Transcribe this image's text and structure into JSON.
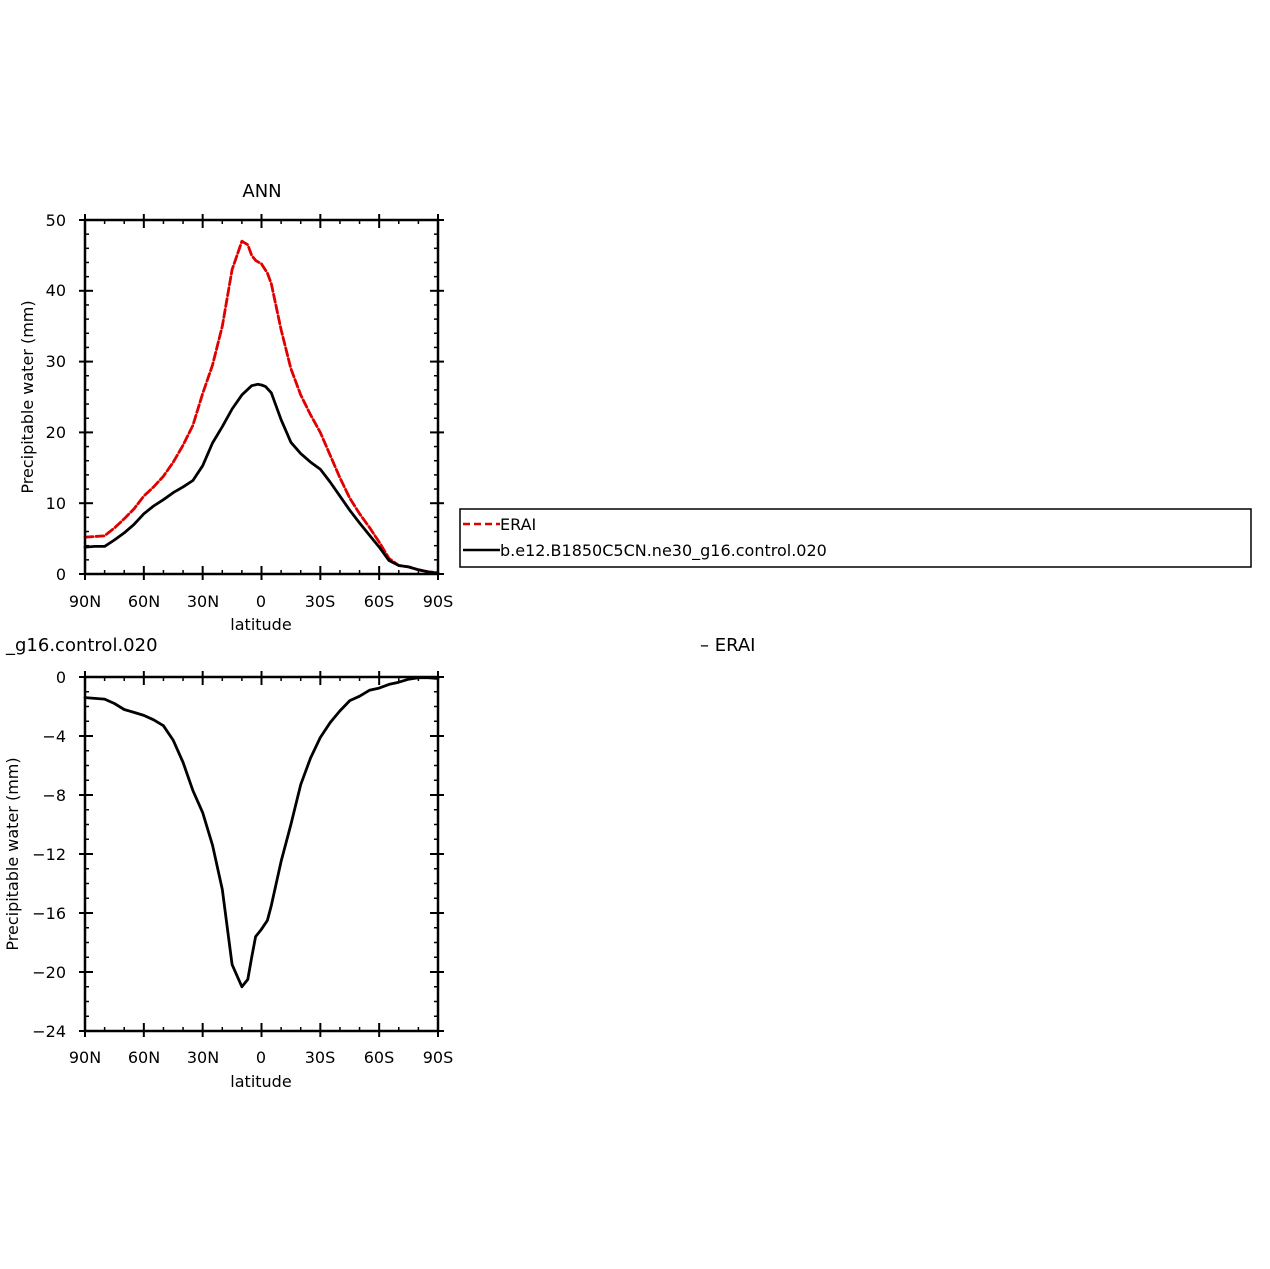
{
  "chart_data": [
    {
      "type": "line",
      "title": "ANN",
      "xlabel": "latitude",
      "ylabel": "Precipitable water (mm)",
      "xlim": [
        90,
        -90
      ],
      "ylim": [
        0,
        50
      ],
      "x_ticks": [
        90,
        60,
        30,
        0,
        -30,
        -60,
        -90
      ],
      "x_tick_labels": [
        "90N",
        "60N",
        "30N",
        "0",
        "30S",
        "60S",
        "90S"
      ],
      "y_ticks": [
        0,
        10,
        20,
        30,
        40,
        50
      ],
      "y_tick_labels": [
        "0",
        "10",
        "20",
        "30",
        "40",
        "50"
      ],
      "legend": {
        "placement": "right",
        "entries": [
          "ERAI",
          "b.e12.B1850C5CN.ne30_g16.control.020"
        ]
      },
      "series": [
        {
          "name": "ERAI",
          "color": "#e00000",
          "style": "dashed",
          "x": [
            90,
            85,
            80,
            75,
            70,
            65,
            60,
            55,
            50,
            45,
            40,
            35,
            30,
            25,
            20,
            15,
            10,
            7,
            5,
            3,
            0,
            -3,
            -5,
            -10,
            -15,
            -20,
            -25,
            -30,
            -35,
            -40,
            -45,
            -50,
            -55,
            -60,
            -65,
            -70,
            -75,
            -80,
            -85,
            -90
          ],
          "y": [
            5.2,
            5.3,
            5.4,
            6.5,
            7.8,
            9.2,
            11,
            12.3,
            13.8,
            15.8,
            18.2,
            21,
            25.5,
            29.5,
            35,
            43,
            47,
            46.5,
            45,
            44.3,
            43.8,
            42.5,
            41,
            34.5,
            29,
            25.3,
            22.5,
            20,
            16.8,
            13.6,
            10.7,
            8.5,
            6.6,
            4.5,
            2.2,
            1.2,
            1.0,
            0.6,
            0.3,
            0.2
          ]
        },
        {
          "name": "b.e12.B1850C5CN.ne30_g16.control.020",
          "color": "#000000",
          "style": "solid",
          "x": [
            90,
            85,
            80,
            75,
            70,
            65,
            60,
            55,
            50,
            45,
            40,
            35,
            30,
            25,
            20,
            15,
            10,
            5,
            2,
            0,
            -2,
            -5,
            -10,
            -15,
            -20,
            -25,
            -30,
            -35,
            -40,
            -45,
            -50,
            -55,
            -60,
            -65,
            -70,
            -75,
            -80,
            -85,
            -90
          ],
          "y": [
            3.8,
            3.9,
            3.9,
            4.8,
            5.8,
            7,
            8.5,
            9.6,
            10.5,
            11.5,
            12.3,
            13.2,
            15.3,
            18.5,
            20.8,
            23.3,
            25.3,
            26.6,
            26.8,
            26.7,
            26.5,
            25.6,
            21.8,
            18.6,
            17,
            15.8,
            14.8,
            13,
            11,
            9,
            7.2,
            5.5,
            3.8,
            1.9,
            1.2,
            1.0,
            0.6,
            0.3,
            0.1
          ]
        }
      ]
    },
    {
      "type": "line",
      "title": "_g16.control.020",
      "title_right": "– ERAI",
      "xlabel": "latitude",
      "ylabel": "Precipitable water (mm)",
      "xlim": [
        90,
        -90
      ],
      "ylim": [
        -24,
        0
      ],
      "x_ticks": [
        90,
        60,
        30,
        0,
        -30,
        -60,
        -90
      ],
      "x_tick_labels": [
        "90N",
        "60N",
        "30N",
        "0",
        "30S",
        "60S",
        "90S"
      ],
      "y_ticks": [
        0,
        -4,
        -8,
        -12,
        -16,
        -20,
        -24
      ],
      "y_tick_labels": [
        "0",
        "−4",
        "−8",
        "−12",
        "−16",
        "−20",
        "−24"
      ],
      "series": [
        {
          "color": "#000000",
          "style": "solid",
          "x": [
            90,
            85,
            80,
            75,
            70,
            65,
            60,
            55,
            50,
            45,
            40,
            35,
            30,
            25,
            20,
            15,
            10,
            7,
            5,
            3,
            0,
            -3,
            -5,
            -10,
            -15,
            -20,
            -25,
            -30,
            -35,
            -40,
            -45,
            -50,
            -55,
            -60,
            -65,
            -70,
            -75,
            -80,
            -85,
            -90
          ],
          "y": [
            -1.4,
            -1.45,
            -1.5,
            -1.8,
            -2.2,
            -2.4,
            -2.6,
            -2.9,
            -3.3,
            -4.3,
            -5.8,
            -7.7,
            -9.2,
            -11.4,
            -14.4,
            -19.5,
            -21.0,
            -20.5,
            -19.0,
            -17.6,
            -17.1,
            -16.5,
            -15.5,
            -12.5,
            -10,
            -7.3,
            -5.5,
            -4.1,
            -3.1,
            -2.3,
            -1.6,
            -1.3,
            -0.9,
            -0.75,
            -0.5,
            -0.35,
            -0.15,
            -0.05,
            -0.05,
            -0.1
          ]
        }
      ]
    }
  ]
}
